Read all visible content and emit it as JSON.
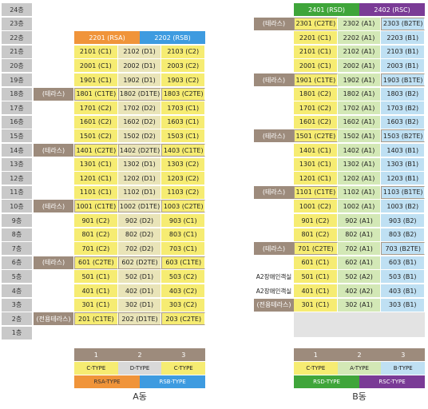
{
  "floors": [
    "24층",
    "23층",
    "22층",
    "21층",
    "20층",
    "19층",
    "18층",
    "17층",
    "16층",
    "15층",
    "14층",
    "13층",
    "12층",
    "11층",
    "10층",
    "9층",
    "8층",
    "7층",
    "6층",
    "5층",
    "4층",
    "3층",
    "2층",
    "1층"
  ],
  "buildings": [
    {
      "name": "A동",
      "header": [
        "2201 (RSA)",
        "2202 (RSB)"
      ],
      "rows": [
        {
          "units": [
            "2101 (C1)",
            "2102 (D1)",
            "2103 (C2)"
          ]
        },
        {
          "units": [
            "2001 (C1)",
            "2002 (D1)",
            "2003 (C2)"
          ]
        },
        {
          "units": [
            "1901 (C1)",
            "1902 (D1)",
            "1903 (C2)"
          ]
        },
        {
          "label": "(테라스)",
          "units": [
            "1801 (C1TE)",
            "1802 (D1TE)",
            "1803 (C2TE)"
          ]
        },
        {
          "units": [
            "1701 (C2)",
            "1702 (D2)",
            "1703 (C1)"
          ]
        },
        {
          "units": [
            "1601 (C2)",
            "1602 (D2)",
            "1603 (C1)"
          ]
        },
        {
          "units": [
            "1501 (C2)",
            "1502 (D2)",
            "1503 (C1)"
          ]
        },
        {
          "label": "(테라스)",
          "units": [
            "1401 (C2TE)",
            "1402 (D2TE)",
            "1403 (C1TE)"
          ]
        },
        {
          "units": [
            "1301 (C1)",
            "1302 (D1)",
            "1303 (C2)"
          ]
        },
        {
          "units": [
            "1201 (C1)",
            "1202 (D1)",
            "1203 (C2)"
          ]
        },
        {
          "units": [
            "1101 (C1)",
            "1102 (D1)",
            "1103 (C2)"
          ]
        },
        {
          "label": "(테라스)",
          "units": [
            "1001 (C1TE)",
            "1002 (D1TE)",
            "1003 (C2TE)"
          ]
        },
        {
          "units": [
            "901 (C2)",
            "902 (D2)",
            "903 (C1)"
          ]
        },
        {
          "units": [
            "801 (C2)",
            "802 (D2)",
            "803 (C1)"
          ]
        },
        {
          "units": [
            "701 (C2)",
            "702 (D2)",
            "703 (C1)"
          ]
        },
        {
          "label": "(테라스)",
          "units": [
            "601 (C2TE)",
            "602 (D2TE)",
            "603 (C1TE)"
          ]
        },
        {
          "units": [
            "501 (C1)",
            "502 (D1)",
            "503 (C2)"
          ]
        },
        {
          "units": [
            "401 (C1)",
            "402 (D1)",
            "403 (C2)"
          ]
        },
        {
          "units": [
            "301 (C1)",
            "302 (D1)",
            "303 (C2)"
          ]
        },
        {
          "label": "(전용테라스)",
          "units": [
            "201 (C1TE)",
            "202 (D1TE)",
            "203 (C2TE)"
          ]
        }
      ],
      "legend": {
        "numbers": [
          "1",
          "2",
          "3"
        ],
        "types": [
          "C-TYPE",
          "D-TYPE",
          "C-TYPE"
        ],
        "wings": [
          "RSA-TYPE",
          "RSB-TYPE"
        ]
      }
    },
    {
      "name": "B동",
      "header": [
        "2401 (RSD)",
        "2402 (RSC)"
      ],
      "rows": [
        {
          "label": "(테라스)",
          "units": [
            "2301 (C2TE)",
            "2302 (A1)",
            "2303 (B2TE)"
          ]
        },
        {
          "units": [
            "2201 (C1)",
            "2202 (A1)",
            "2203 (B1)"
          ]
        },
        {
          "units": [
            "2101 (C1)",
            "2102 (A1)",
            "2103 (B1)"
          ]
        },
        {
          "units": [
            "2001 (C1)",
            "2002 (A1)",
            "2003 (B1)"
          ]
        },
        {
          "label": "(테라스)",
          "units": [
            "1901 (C1TE)",
            "1902 (A1)",
            "1903 (B1TE)"
          ]
        },
        {
          "units": [
            "1801 (C2)",
            "1802 (A1)",
            "1803 (B2)"
          ]
        },
        {
          "units": [
            "1701 (C2)",
            "1702 (A1)",
            "1703 (B2)"
          ]
        },
        {
          "units": [
            "1601 (C2)",
            "1602 (A1)",
            "1603 (B2)"
          ]
        },
        {
          "label": "(테라스)",
          "units": [
            "1501 (C2TE)",
            "1502 (A1)",
            "1503 (B2TE)"
          ]
        },
        {
          "units": [
            "1401 (C1)",
            "1402 (A1)",
            "1403 (B1)"
          ]
        },
        {
          "units": [
            "1301 (C1)",
            "1302 (A1)",
            "1303 (B1)"
          ]
        },
        {
          "units": [
            "1201 (C1)",
            "1202 (A1)",
            "1203 (B1)"
          ]
        },
        {
          "label": "(테라스)",
          "units": [
            "1101 (C1TE)",
            "1102 (A1)",
            "1103 (B1TE)"
          ]
        },
        {
          "units": [
            "1001 (C2)",
            "1002 (A1)",
            "1003 (B2)"
          ]
        },
        {
          "units": [
            "901 (C2)",
            "902 (A1)",
            "903 (B2)"
          ]
        },
        {
          "units": [
            "801 (C2)",
            "802 (A1)",
            "803 (B2)"
          ]
        },
        {
          "label": "(테라스)",
          "units": [
            "701 (C2TE)",
            "702 (A1)",
            "703 (B2TE)"
          ]
        },
        {
          "units": [
            "601 (C1)",
            "602 (A1)",
            "603 (B1)"
          ]
        },
        {
          "note": "A2장애인객실",
          "units": [
            "501 (C1)",
            "502 (A2)",
            "503 (B1)"
          ]
        },
        {
          "note": "A2장애인객실",
          "units": [
            "401 (C1)",
            "402 (A2)",
            "403 (B1)"
          ]
        },
        {
          "label": "(전용테라스)",
          "units": [
            "301 (C1)",
            "302 (A1)",
            "303 (B1)"
          ]
        }
      ],
      "legend": {
        "numbers": [
          "1",
          "2",
          "3"
        ],
        "types": [
          "C-TYPE",
          "A-TYPE",
          "B-TYPE"
        ],
        "wings": [
          "RSD-TYPE",
          "RSC-TYPE"
        ]
      }
    }
  ]
}
